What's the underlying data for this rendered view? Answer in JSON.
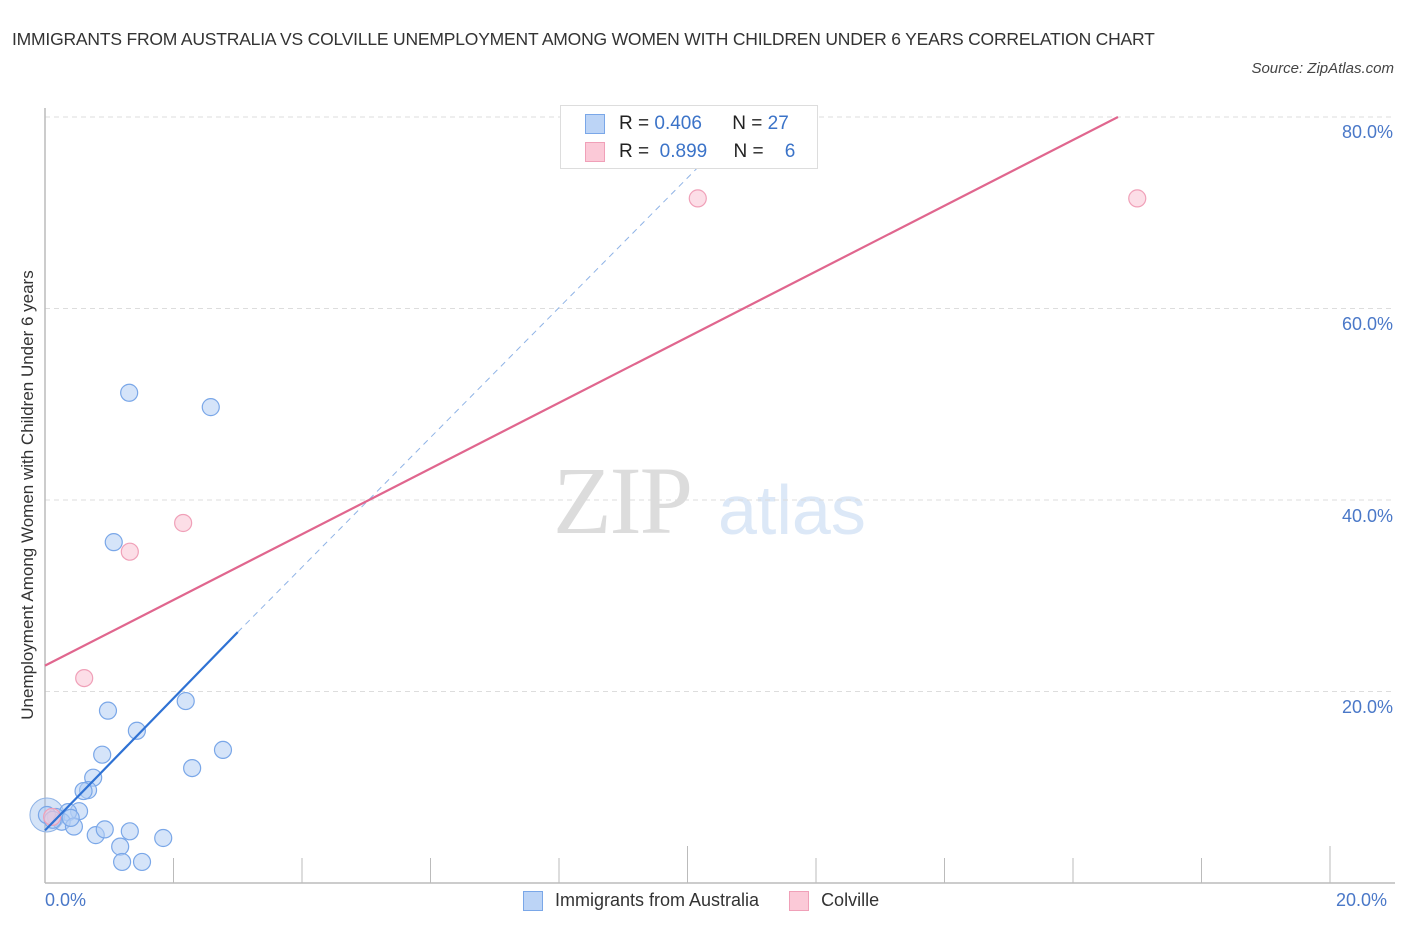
{
  "header": {
    "title": "IMMIGRANTS FROM AUSTRALIA VS COLVILLE UNEMPLOYMENT AMONG WOMEN WITH CHILDREN UNDER 6 YEARS CORRELATION CHART",
    "source": "Source: ZipAtlas.com"
  },
  "watermark": {
    "zip": "ZIP",
    "atlas": "atlas"
  },
  "legend_box": {
    "rows": [
      {
        "r_label": "R =",
        "r_value": "0.406",
        "n_label": "N =",
        "n_value": "27",
        "color": "#7aa7e8"
      },
      {
        "r_label": "R =",
        "r_value": "0.899",
        "n_label": "N =",
        "n_value": "6",
        "color": "#f0a0b8"
      }
    ]
  },
  "bottom_legend": {
    "items": [
      {
        "label": "Immigrants from Australia",
        "color": "#7aa7e8"
      },
      {
        "label": "Colville",
        "color": "#f0a0b8"
      }
    ]
  },
  "axes": {
    "y_label": "Unemployment Among Women with Children Under 6 years",
    "y_ticks": [
      "80.0%",
      "60.0%",
      "40.0%",
      "20.0%"
    ],
    "x_ticks": [
      "0.0%",
      "20.0%"
    ]
  },
  "chart_data": {
    "type": "scatter",
    "title": "Immigrants from Australia vs Colville Unemployment Among Women with Children Under 6 years Correlation Chart",
    "xlabel": "",
    "ylabel": "Unemployment Among Women with Children Under 6 years",
    "xlim": [
      0,
      20
    ],
    "ylim": [
      0,
      80
    ],
    "x_tick_labels": [
      "0.0%",
      "20.0%"
    ],
    "y_tick_labels": [
      "20.0%",
      "40.0%",
      "60.0%",
      "80.0%"
    ],
    "grid": "horizontal dashed",
    "legend_position": "bottom center",
    "series": [
      {
        "name": "Immigrants from Australia",
        "color": "#7aa7e8",
        "R": 0.406,
        "N": 27,
        "points": [
          [
            1.31,
            51.2
          ],
          [
            2.58,
            49.7
          ],
          [
            1.07,
            35.6
          ],
          [
            0.98,
            18.0
          ],
          [
            2.19,
            19.0
          ],
          [
            1.43,
            15.9
          ],
          [
            0.89,
            13.4
          ],
          [
            2.29,
            12.0
          ],
          [
            2.77,
            13.9
          ],
          [
            0.75,
            11.0
          ],
          [
            0.67,
            9.7
          ],
          [
            0.6,
            9.6
          ],
          [
            0.53,
            7.5
          ],
          [
            0.36,
            7.4
          ],
          [
            0.17,
            6.9
          ],
          [
            0.03,
            7.1
          ],
          [
            0.26,
            6.4
          ],
          [
            0.12,
            6.6
          ],
          [
            0.45,
            5.9
          ],
          [
            0.79,
            5.0
          ],
          [
            0.93,
            5.6
          ],
          [
            1.32,
            5.4
          ],
          [
            1.17,
            3.8
          ],
          [
            1.84,
            4.7
          ],
          [
            1.2,
            2.2
          ],
          [
            1.51,
            2.2
          ],
          [
            0.4,
            6.8
          ]
        ],
        "trendline": {
          "x": [
            0,
            3.0
          ],
          "y": [
            5.5,
            26.2
          ],
          "extended_dashed_to": [
            10.2,
            75.0
          ]
        }
      },
      {
        "name": "Colville",
        "color": "#f0a0b8",
        "R": 0.899,
        "N": 6,
        "points": [
          [
            0.61,
            21.4
          ],
          [
            1.32,
            34.6
          ],
          [
            2.15,
            37.6
          ],
          [
            10.16,
            71.5
          ],
          [
            17.0,
            71.5
          ],
          [
            0.11,
            6.9
          ]
        ],
        "trendline": {
          "x": [
            0,
            16.7
          ],
          "y": [
            22.7,
            80.0
          ]
        }
      }
    ]
  }
}
